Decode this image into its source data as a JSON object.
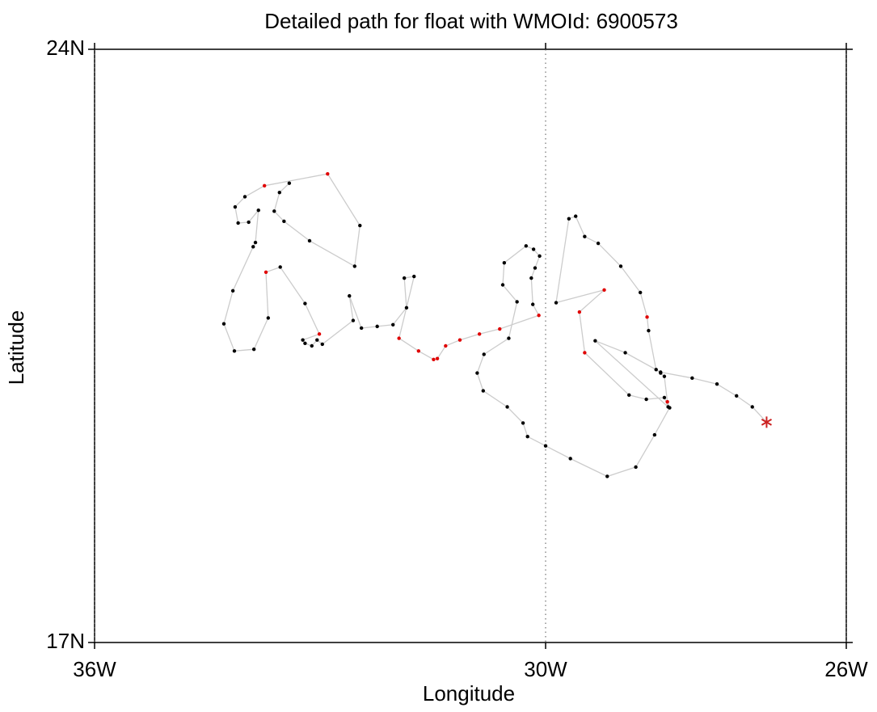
{
  "chart_data": {
    "type": "line",
    "title": "Detailed path for float with WMOId: 6900573",
    "x_label": "Longitude",
    "y_label": "Latitude",
    "xlim": [
      -36,
      -26
    ],
    "ylim": [
      17,
      24
    ],
    "xticks": [
      {
        "value": -36,
        "label": "36W"
      },
      {
        "value": -30,
        "label": "30W"
      },
      {
        "value": -26,
        "label": "26W"
      }
    ],
    "yticks": [
      {
        "value": 17,
        "label": "17N"
      },
      {
        "value": 24,
        "label": "24N"
      }
    ],
    "xgrid": true,
    "grid_style": "dotted",
    "line_color": "#cccccc",
    "end_marker": "asterisk",
    "x": [
      -33.41,
      -33.54,
      -33.61,
      -33.48,
      -33.14,
      -32.54,
      -32.47,
      -32.9,
      -33.74,
      -34.0,
      -34.13,
      -34.09,
      -33.95,
      -33.82,
      -33.86,
      -33.89,
      -34.16,
      -34.28,
      -34.14,
      -33.88,
      -33.69,
      -33.72,
      -33.53,
      -33.2,
      -33.01,
      -33.23,
      -33.2,
      -33.11,
      -33.04,
      -32.97,
      -32.56,
      -32.61,
      -32.45,
      -32.24,
      -32.03,
      -31.85,
      -31.88,
      -31.75,
      -31.95,
      -31.69,
      -31.49,
      -31.44,
      -31.33,
      -31.14,
      -30.88,
      -30.61,
      -30.09,
      -30.17,
      -30.19,
      -30.14,
      -30.08,
      -30.16,
      -30.26,
      -30.55,
      -30.57,
      -30.38,
      -30.49,
      -30.82,
      -30.91,
      -30.83,
      -30.51,
      -30.3,
      -30.24,
      -30.0,
      -29.67,
      -29.18,
      -28.8,
      -28.55,
      -28.35,
      -28.38,
      -28.42,
      -28.47,
      -28.53,
      -28.63,
      -28.65,
      -28.74,
      -29.0,
      -29.3,
      -29.48,
      -29.6,
      -29.69,
      -29.86,
      -29.22,
      -29.55,
      -29.48,
      -28.89,
      -28.66,
      -28.42,
      -28.37,
      -29.34,
      -28.94,
      -28.47,
      -28.05,
      -27.72,
      -27.46,
      -27.25,
      -27.06
    ],
    "values": [
      22.42,
      22.31,
      22.09,
      21.97,
      21.74,
      21.44,
      21.92,
      22.53,
      22.39,
      22.26,
      22.14,
      21.95,
      21.96,
      22.1,
      21.72,
      21.67,
      21.15,
      20.76,
      20.44,
      20.46,
      20.83,
      21.37,
      21.43,
      21.0,
      20.64,
      20.57,
      20.53,
      20.5,
      20.57,
      20.52,
      20.8,
      21.09,
      20.71,
      20.73,
      20.75,
      20.95,
      21.3,
      21.32,
      20.59,
      20.44,
      20.34,
      20.35,
      20.5,
      20.57,
      20.64,
      20.7,
      20.86,
      20.99,
      21.3,
      21.42,
      21.56,
      21.64,
      21.68,
      21.48,
      21.22,
      21.02,
      20.59,
      20.4,
      20.18,
      19.97,
      19.78,
      19.59,
      19.43,
      19.32,
      19.17,
      18.96,
      19.07,
      19.45,
      19.77,
      19.84,
      20.14,
      20.18,
      20.22,
      20.68,
      20.84,
      21.13,
      21.44,
      21.71,
      21.79,
      22.03,
      22.0,
      21.01,
      21.16,
      20.9,
      20.42,
      19.92,
      19.87,
      19.89,
      19.78,
      20.56,
      20.42,
      20.19,
      20.12,
      20.05,
      19.91,
      19.78,
      19.6
    ],
    "marker_colors": [
      "#000000",
      "#000000",
      "#000000",
      "#000000",
      "#000000",
      "#000000",
      "#000000",
      "#e00000",
      "#e00000",
      "#000000",
      "#000000",
      "#000000",
      "#000000",
      "#000000",
      "#000000",
      "#000000",
      "#000000",
      "#000000",
      "#000000",
      "#000000",
      "#000000",
      "#e00000",
      "#000000",
      "#000000",
      "#e00000",
      "#000000",
      "#000000",
      "#000000",
      "#000000",
      "#000000",
      "#000000",
      "#000000",
      "#000000",
      "#000000",
      "#000000",
      "#000000",
      "#000000",
      "#000000",
      "#e00000",
      "#e00000",
      "#e00000",
      "#e00000",
      "#e00000",
      "#e00000",
      "#e00000",
      "#e00000",
      "#e00000",
      "#000000",
      "#000000",
      "#000000",
      "#000000",
      "#000000",
      "#000000",
      "#000000",
      "#000000",
      "#000000",
      "#000000",
      "#000000",
      "#000000",
      "#000000",
      "#000000",
      "#000000",
      "#000000",
      "#000000",
      "#000000",
      "#000000",
      "#000000",
      "#000000",
      "#000000",
      "#e00000",
      "#000000",
      "#000000",
      "#000000",
      "#000000",
      "#e00000",
      "#000000",
      "#000000",
      "#000000",
      "#000000",
      "#000000",
      "#000000",
      "#000000",
      "#e00000",
      "#e00000",
      "#e00000",
      "#000000",
      "#000000",
      "#000000",
      "#000000",
      "#000000",
      "#000000",
      "#000000",
      "#000000",
      "#000000",
      "#000000",
      "#000000",
      "#cc2222"
    ]
  }
}
